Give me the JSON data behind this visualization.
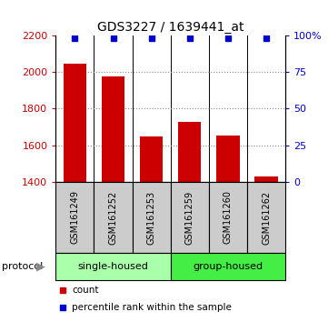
{
  "title": "GDS3227 / 1639441_at",
  "samples": [
    "GSM161249",
    "GSM161252",
    "GSM161253",
    "GSM161259",
    "GSM161260",
    "GSM161262"
  ],
  "counts": [
    2045,
    1975,
    1650,
    1730,
    1655,
    1430
  ],
  "percentile_ranks": [
    98,
    98,
    98,
    98,
    98,
    98
  ],
  "ylim_left": [
    1400,
    2200
  ],
  "ylim_right": [
    0,
    100
  ],
  "yticks_left": [
    1400,
    1600,
    1800,
    2000,
    2200
  ],
  "yticks_right": [
    0,
    25,
    50,
    75,
    100
  ],
  "ytick_labels_right": [
    "0",
    "25",
    "50",
    "75",
    "100%"
  ],
  "bar_color": "#cc0000",
  "marker_color": "#0000cc",
  "bar_width": 0.6,
  "groups": [
    {
      "label": "single-housed",
      "samples": [
        0,
        1,
        2
      ],
      "color": "#aaffaa"
    },
    {
      "label": "group-housed",
      "samples": [
        3,
        4,
        5
      ],
      "color": "#44ee44"
    }
  ],
  "protocol_label": "protocol",
  "legend_items": [
    {
      "color": "#cc0000",
      "label": "count"
    },
    {
      "color": "#0000cc",
      "label": "percentile rank within the sample"
    }
  ],
  "background_color": "#ffffff",
  "plot_bg": "#ffffff",
  "dotted_line_color": "#888888",
  "sample_box_color": "#cccccc",
  "x_positions": [
    0,
    1,
    2,
    3,
    4,
    5
  ],
  "n": 6
}
